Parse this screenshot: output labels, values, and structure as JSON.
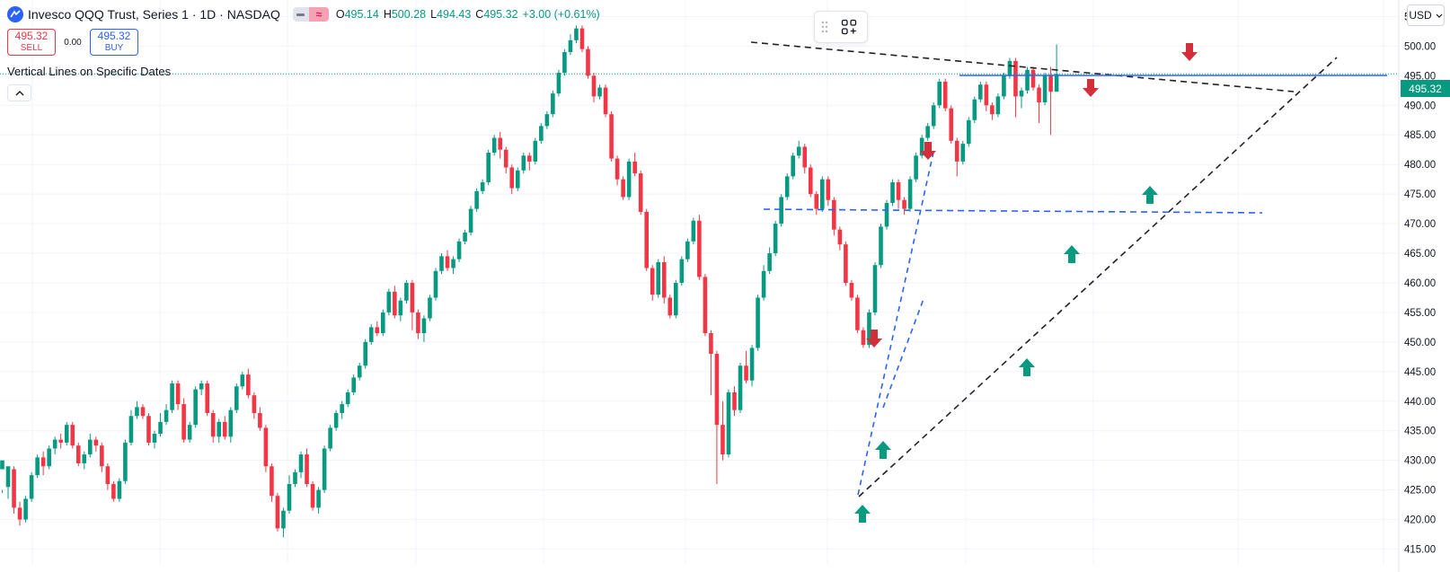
{
  "header": {
    "symbol_title": "Invesco QQQ Trust, Series 1 · 1D · NASDAQ",
    "ohlc": {
      "open_label": "O",
      "open": "495.14",
      "high_label": "H",
      "high": "500.28",
      "low_label": "L",
      "low": "494.43",
      "close_label": "C",
      "close": "495.32",
      "change": "+3.00 (+0.61%)"
    }
  },
  "trade": {
    "sell_price": "495.32",
    "sell_label": "SELL",
    "spread": "0.00",
    "buy_price": "495.32",
    "buy_label": "BUY"
  },
  "indicator": {
    "name": "Vertical Lines on Specific Dates"
  },
  "currency": "USD",
  "current_price": "495.32",
  "icons": [
    "logo-icon",
    "eye-icon",
    "approx-icon",
    "collapse-icon",
    "drag-handle-icon",
    "object-tree-icon",
    "chevron-down-icon"
  ],
  "colors": {
    "up": "#089981",
    "down": "#f23645",
    "drawing_blue": "#2962ff",
    "trend_black": "#222222"
  },
  "chart_data": {
    "type": "candlestick",
    "y_axis": {
      "ticks": [
        "505.00",
        "500.00",
        "495.00",
        "490.00",
        "485.00",
        "480.00",
        "475.00",
        "470.00",
        "465.00",
        "460.00",
        "455.00",
        "450.00",
        "445.00",
        "440.00",
        "435.00",
        "430.00",
        "425.00",
        "420.00",
        "415.00"
      ],
      "range": [
        412.5,
        507.8
      ]
    },
    "candles": [
      [
        428.5,
        430.0,
        425.0,
        424.5
      ],
      [
        425.5,
        429.0,
        425.5,
        423.5
      ],
      [
        428.5,
        422.0,
        429.0,
        421.0
      ],
      [
        422.0,
        420.0,
        423.0,
        419.0
      ],
      [
        420.0,
        423.5,
        424.0,
        419.5
      ],
      [
        423.5,
        427.5,
        428.0,
        423.0
      ],
      [
        427.5,
        430.5,
        431.0,
        427.0
      ],
      [
        430.5,
        429.0,
        431.5,
        427.5
      ],
      [
        429.0,
        432.0,
        432.5,
        428.5
      ],
      [
        432.0,
        433.5,
        434.0,
        431.0
      ],
      [
        433.5,
        433.0,
        434.5,
        432.0
      ],
      [
        433.0,
        436.0,
        436.5,
        432.5
      ],
      [
        436.0,
        432.5,
        436.5,
        432.0
      ],
      [
        432.5,
        429.5,
        433.0,
        429.0
      ],
      [
        429.5,
        431.0,
        431.5,
        428.5
      ],
      [
        431.0,
        433.5,
        434.5,
        430.5
      ],
      [
        433.5,
        432.5,
        434.0,
        431.5
      ],
      [
        432.5,
        429.0,
        433.0,
        428.0
      ],
      [
        429.0,
        426.0,
        429.5,
        425.0
      ],
      [
        426.0,
        423.5,
        426.5,
        423.0
      ],
      [
        423.5,
        426.5,
        427.0,
        423.0
      ],
      [
        426.5,
        433.0,
        433.5,
        426.0
      ],
      [
        433.0,
        437.5,
        438.5,
        432.5
      ],
      [
        437.5,
        439.0,
        440.0,
        437.0
      ],
      [
        439.0,
        437.5,
        439.5,
        437.0
      ],
      [
        437.5,
        433.0,
        438.0,
        432.5
      ],
      [
        433.0,
        434.5,
        435.0,
        432.0
      ],
      [
        434.5,
        436.5,
        438.0,
        434.0
      ],
      [
        436.5,
        438.5,
        439.5,
        436.0
      ],
      [
        438.5,
        443.0,
        443.5,
        438.0
      ],
      [
        443.0,
        439.5,
        443.5,
        438.5
      ],
      [
        439.5,
        433.5,
        440.5,
        433.0
      ],
      [
        433.5,
        436.0,
        436.5,
        433.0
      ],
      [
        436.0,
        442.0,
        442.5,
        435.5
      ],
      [
        442.0,
        443.0,
        443.5,
        441.0
      ],
      [
        443.0,
        438.0,
        443.5,
        437.5
      ],
      [
        438.0,
        434.0,
        438.5,
        433.0
      ],
      [
        434.0,
        436.5,
        437.0,
        433.0
      ],
      [
        436.5,
        434.0,
        437.5,
        433.5
      ],
      [
        434.0,
        438.5,
        439.0,
        433.0
      ],
      [
        438.5,
        442.5,
        443.0,
        438.0
      ],
      [
        442.5,
        444.5,
        445.0,
        442.0
      ],
      [
        444.5,
        441.0,
        445.5,
        440.5
      ],
      [
        441.0,
        438.0,
        441.5,
        437.0
      ],
      [
        438.0,
        435.5,
        439.0,
        435.0
      ],
      [
        435.5,
        429.0,
        436.0,
        428.0
      ],
      [
        429.0,
        424.0,
        429.5,
        423.0
      ],
      [
        424.0,
        418.5,
        424.5,
        418.0
      ],
      [
        418.5,
        421.5,
        422.0,
        417.0
      ],
      [
        421.5,
        426.0,
        427.5,
        421.0
      ],
      [
        426.0,
        428.0,
        428.5,
        425.5
      ],
      [
        428.0,
        431.0,
        431.5,
        427.0
      ],
      [
        431.0,
        426.0,
        432.0,
        425.5
      ],
      [
        426.0,
        422.0,
        426.5,
        421.5
      ],
      [
        422.0,
        425.0,
        425.5,
        421.0
      ],
      [
        425.0,
        432.0,
        432.5,
        424.5
      ],
      [
        432.0,
        435.5,
        436.0,
        431.5
      ],
      [
        435.5,
        438.0,
        438.5,
        435.0
      ],
      [
        438.0,
        439.5,
        440.0,
        437.0
      ],
      [
        439.5,
        441.5,
        442.0,
        439.0
      ],
      [
        441.5,
        444.0,
        444.5,
        441.0
      ],
      [
        444.0,
        446.0,
        446.5,
        443.5
      ],
      [
        446.0,
        450.0,
        450.5,
        445.5
      ],
      [
        450.0,
        452.5,
        453.0,
        449.5
      ],
      [
        452.5,
        451.5,
        453.5,
        451.0
      ],
      [
        451.5,
        455.0,
        455.5,
        451.0
      ],
      [
        455.0,
        458.5,
        459.0,
        454.5
      ],
      [
        458.5,
        454.5,
        459.5,
        454.0
      ],
      [
        454.5,
        457.0,
        457.5,
        453.5
      ],
      [
        457.0,
        460.0,
        460.5,
        456.5
      ],
      [
        460.0,
        455.0,
        460.5,
        452.0
      ],
      [
        455.0,
        451.5,
        455.5,
        450.5
      ],
      [
        451.5,
        454.0,
        454.5,
        450.0
      ],
      [
        454.0,
        457.5,
        458.0,
        453.5
      ],
      [
        457.5,
        462.0,
        462.5,
        457.0
      ],
      [
        462.0,
        464.5,
        465.0,
        461.5
      ],
      [
        464.5,
        462.5,
        465.5,
        462.0
      ],
      [
        462.5,
        464.0,
        464.5,
        461.5
      ],
      [
        464.0,
        467.0,
        467.5,
        463.5
      ],
      [
        467.0,
        468.5,
        469.0,
        466.5
      ],
      [
        468.5,
        472.5,
        473.0,
        468.0
      ],
      [
        472.5,
        475.5,
        476.0,
        472.0
      ],
      [
        475.5,
        477.0,
        477.5,
        475.0
      ],
      [
        477.0,
        482.0,
        482.5,
        476.5
      ],
      [
        482.0,
        484.5,
        485.0,
        481.5
      ],
      [
        484.5,
        482.5,
        485.5,
        481.0
      ],
      [
        482.5,
        479.5,
        483.0,
        478.5
      ],
      [
        479.5,
        476.0,
        480.0,
        475.0
      ],
      [
        476.0,
        479.0,
        479.5,
        475.5
      ],
      [
        479.0,
        481.5,
        482.0,
        478.5
      ],
      [
        481.5,
        480.5,
        482.0,
        479.0
      ],
      [
        480.5,
        484.0,
        484.5,
        480.0
      ],
      [
        484.0,
        486.5,
        487.0,
        483.5
      ],
      [
        486.5,
        488.5,
        489.0,
        486.0
      ],
      [
        488.5,
        492.0,
        492.5,
        488.0
      ],
      [
        492.0,
        495.5,
        496.0,
        491.5
      ],
      [
        495.5,
        499.0,
        499.5,
        495.0
      ],
      [
        499.0,
        501.0,
        502.0,
        498.5
      ],
      [
        501.0,
        503.0,
        503.5,
        500.5
      ],
      [
        503.0,
        499.5,
        503.5,
        499.0
      ],
      [
        499.5,
        495.0,
        500.0,
        494.5
      ],
      [
        495.0,
        491.5,
        495.5,
        490.5
      ],
      [
        491.5,
        493.0,
        493.5,
        491.0
      ],
      [
        493.0,
        488.5,
        493.5,
        488.0
      ],
      [
        488.5,
        481.0,
        489.0,
        480.5
      ],
      [
        481.0,
        477.5,
        481.5,
        476.5
      ],
      [
        477.5,
        474.5,
        478.0,
        474.0
      ],
      [
        474.5,
        480.5,
        481.0,
        474.0
      ],
      [
        480.5,
        478.5,
        482.0,
        478.0
      ],
      [
        478.5,
        472.0,
        479.0,
        471.5
      ],
      [
        472.0,
        462.5,
        472.5,
        462.0
      ],
      [
        462.5,
        458.0,
        463.0,
        457.0
      ],
      [
        458.0,
        463.5,
        464.0,
        457.5
      ],
      [
        463.5,
        457.5,
        464.5,
        456.5
      ],
      [
        457.5,
        454.5,
        458.0,
        454.0
      ],
      [
        454.5,
        460.0,
        460.5,
        454.0
      ],
      [
        460.0,
        464.0,
        464.5,
        459.5
      ],
      [
        464.0,
        467.0,
        467.5,
        463.5
      ],
      [
        467.0,
        470.5,
        471.0,
        466.5
      ],
      [
        470.5,
        461.0,
        471.5,
        460.5
      ],
      [
        461.0,
        451.5,
        461.5,
        451.0
      ],
      [
        451.5,
        448.0,
        452.0,
        441.0
      ],
      [
        448.0,
        436.0,
        448.5,
        426.0
      ],
      [
        436.0,
        431.0,
        440.0,
        430.0
      ],
      [
        431.0,
        441.5,
        442.0,
        430.5
      ],
      [
        441.5,
        438.5,
        442.5,
        437.5
      ],
      [
        438.5,
        446.0,
        446.5,
        438.0
      ],
      [
        446.0,
        443.5,
        448.5,
        443.0
      ],
      [
        443.5,
        449.0,
        449.5,
        442.5
      ],
      [
        449.0,
        457.5,
        458.0,
        448.5
      ],
      [
        457.5,
        462.0,
        463.0,
        457.0
      ],
      [
        462.0,
        465.0,
        466.0,
        461.5
      ],
      [
        465.0,
        470.0,
        470.5,
        464.5
      ],
      [
        470.0,
        474.5,
        475.0,
        469.5
      ],
      [
        474.5,
        478.0,
        478.5,
        474.0
      ],
      [
        478.0,
        481.5,
        482.0,
        477.5
      ],
      [
        481.5,
        483.0,
        484.0,
        481.0
      ],
      [
        483.0,
        479.5,
        483.5,
        478.5
      ],
      [
        479.5,
        475.0,
        480.0,
        474.5
      ],
      [
        475.0,
        472.5,
        475.5,
        471.5
      ],
      [
        472.5,
        477.5,
        478.0,
        472.0
      ],
      [
        477.5,
        474.0,
        478.0,
        473.0
      ],
      [
        474.0,
        469.0,
        474.5,
        468.0
      ],
      [
        469.0,
        466.5,
        469.5,
        465.5
      ],
      [
        466.5,
        460.0,
        467.0,
        459.5
      ],
      [
        460.0,
        457.5,
        460.5,
        457.0
      ],
      [
        457.5,
        452.0,
        458.0,
        451.5
      ],
      [
        452.0,
        449.5,
        452.5,
        449.0
      ],
      [
        449.5,
        455.0,
        455.5,
        449.0
      ],
      [
        455.0,
        463.0,
        463.5,
        454.5
      ],
      [
        463.0,
        469.5,
        470.0,
        462.5
      ],
      [
        469.5,
        473.5,
        474.0,
        469.0
      ],
      [
        473.5,
        477.0,
        477.5,
        473.0
      ],
      [
        477.0,
        474.0,
        477.5,
        472.5
      ],
      [
        474.0,
        472.5,
        474.5,
        471.5
      ],
      [
        472.5,
        477.5,
        478.0,
        472.0
      ],
      [
        477.5,
        481.5,
        482.0,
        477.0
      ],
      [
        481.5,
        484.5,
        485.0,
        481.0
      ],
      [
        484.5,
        486.5,
        487.0,
        484.0
      ],
      [
        486.5,
        490.0,
        490.5,
        486.0
      ],
      [
        490.0,
        494.0,
        494.5,
        489.5
      ],
      [
        494.0,
        489.5,
        494.5,
        489.0
      ],
      [
        489.5,
        484.0,
        490.0,
        483.5
      ],
      [
        484.0,
        480.5,
        484.5,
        478.0
      ],
      [
        480.5,
        483.5,
        484.0,
        480.0
      ],
      [
        483.5,
        487.5,
        488.0,
        483.0
      ],
      [
        487.5,
        491.0,
        491.5,
        487.0
      ],
      [
        491.0,
        493.5,
        494.0,
        490.5
      ],
      [
        493.5,
        490.0,
        494.0,
        489.0
      ],
      [
        490.0,
        488.5,
        490.5,
        487.5
      ],
      [
        488.5,
        491.5,
        492.0,
        488.0
      ],
      [
        491.5,
        495.0,
        495.5,
        491.0
      ],
      [
        495.0,
        497.5,
        498.0,
        494.5
      ],
      [
        497.5,
        491.5,
        498.0,
        488.0
      ],
      [
        491.5,
        492.5,
        493.0,
        489.5
      ],
      [
        492.5,
        496.0,
        496.5,
        492.0
      ],
      [
        496.0,
        493.0,
        496.5,
        492.5
      ],
      [
        493.0,
        490.5,
        493.5,
        487.0
      ],
      [
        490.5,
        495.0,
        495.5,
        490.0
      ],
      [
        495.0,
        492.3,
        496.5,
        485.0
      ],
      [
        492.3,
        495.3,
        500.3,
        494.4
      ]
    ]
  }
}
